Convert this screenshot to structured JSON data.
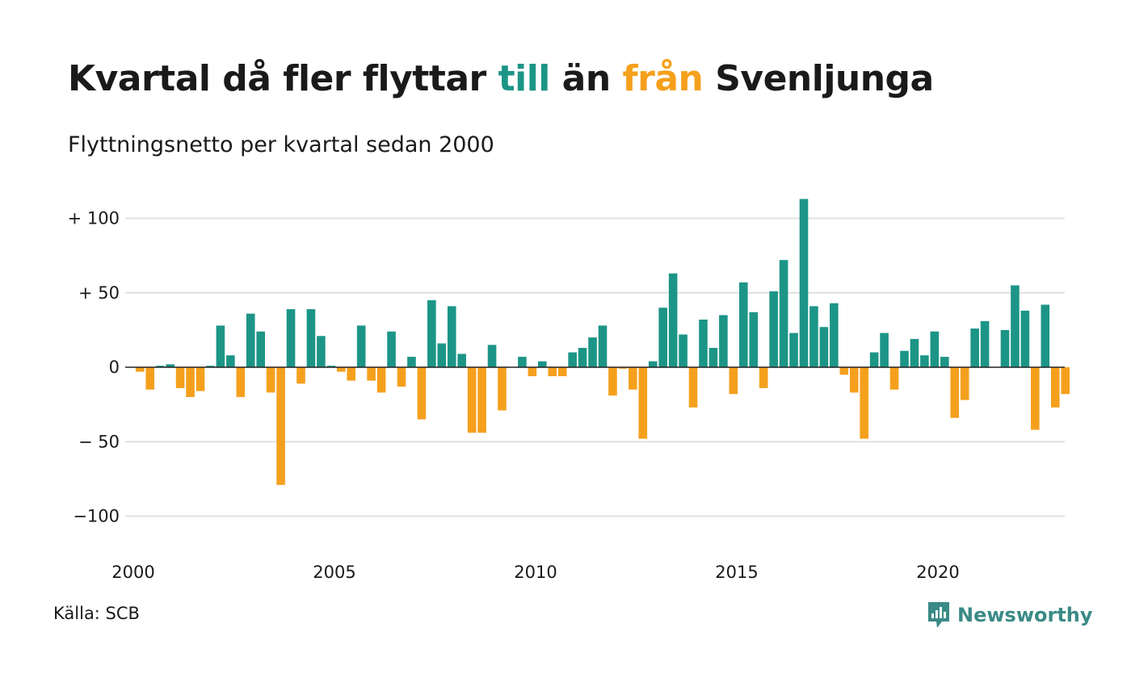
{
  "title": {
    "part1": "Kvartal då fler flyttar ",
    "pos_word": "till",
    "part2": " än ",
    "neg_word": "från",
    "part3": " Svenljunga"
  },
  "subtitle": "Flyttningsnetto per kvartal sedan 2000",
  "source": "Källa: SCB",
  "logo": {
    "text": "Newsworthy",
    "icon": "chart-speech-bubble-icon"
  },
  "colors": {
    "positive": "#1c9587",
    "negative": "#f5a01d",
    "grid": "#e0e0e0",
    "zero": "#222222"
  },
  "chart_data": {
    "type": "bar",
    "x_start": "2000 Q1",
    "ylim": [
      -125,
      125
    ],
    "y_ticks": [
      {
        "value": 100,
        "label": "+ 100"
      },
      {
        "value": 50,
        "label": "+  50"
      },
      {
        "value": 0,
        "label": "0"
      },
      {
        "value": -50,
        "label": "− 50"
      },
      {
        "value": -100,
        "label": "−100"
      }
    ],
    "x_ticks": [
      {
        "year": 2000,
        "label": "2000"
      },
      {
        "year": 2005,
        "label": "2005"
      },
      {
        "year": 2010,
        "label": "2010"
      },
      {
        "year": 2015,
        "label": "2015"
      },
      {
        "year": 2020,
        "label": "2020"
      }
    ],
    "grid": true,
    "values": [
      -3,
      -15,
      1,
      2,
      -14,
      -20,
      -16,
      1,
      28,
      8,
      -20,
      36,
      24,
      -17,
      -79,
      39,
      -11,
      39,
      21,
      1,
      -3,
      -9,
      28,
      -9,
      -17,
      24,
      -13,
      7,
      -35,
      45,
      16,
      41,
      9,
      -44,
      -44,
      15,
      -29,
      0,
      7,
      -6,
      4,
      -6,
      -6,
      10,
      13,
      20,
      28,
      -19,
      -1,
      -15,
      -48,
      4,
      40,
      63,
      22,
      -27,
      32,
      13,
      35,
      -18,
      57,
      37,
      -14,
      51,
      72,
      23,
      113,
      41,
      27,
      43,
      -5,
      -17,
      -48,
      10,
      23,
      -15,
      11,
      19,
      8,
      24,
      7,
      -34,
      -22,
      26,
      31,
      0,
      25,
      55,
      38,
      -42,
      42,
      -27,
      -18
    ]
  }
}
